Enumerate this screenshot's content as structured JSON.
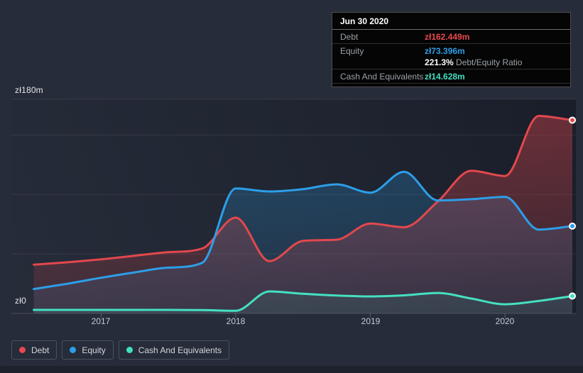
{
  "colors": {
    "background": "#262c39",
    "plot_shade": "#141823",
    "gridline": "#3a4150",
    "axis_text": "#c6ccd4",
    "tooltip_background": "#050505",
    "debt": "#e2484d",
    "equity": "#2d9ee8",
    "cash": "#45e0c1"
  },
  "axis": {
    "y_top_label": "zł180m",
    "y_zero_label": "zł0",
    "x_labels": [
      "2017",
      "2018",
      "2019",
      "2020"
    ]
  },
  "tooltip": {
    "title": "Jun 30 2020",
    "debt_label": "Debt",
    "debt_value": "zł162.449m",
    "equity_label": "Equity",
    "equity_value": "zł73.396m",
    "ratio_value": "221.3%",
    "ratio_label": "Debt/Equity Ratio",
    "cash_label": "Cash And Equivalents",
    "cash_value": "zł14.628m"
  },
  "legend": {
    "items": [
      {
        "label": "Debt",
        "color": "#e8484f"
      },
      {
        "label": "Equity",
        "color": "#2d9ee8"
      },
      {
        "label": "Cash And Equivalents",
        "color": "#42dfc0"
      }
    ]
  },
  "chart_data": {
    "type": "area",
    "title": "Debt, Equity and Cash history",
    "unit": "zł (PLN) millions",
    "x": [
      "2016-06-30",
      "2016-09-30",
      "2016-12-31",
      "2017-03-31",
      "2017-06-30",
      "2017-09-30",
      "2017-12-31",
      "2018-03-31",
      "2018-06-30",
      "2018-09-30",
      "2018-12-31",
      "2019-03-31",
      "2019-06-30",
      "2019-09-30",
      "2019-12-31",
      "2020-03-31",
      "2020-06-30"
    ],
    "x_tick_labels": [
      "2017",
      "2018",
      "2019",
      "2020"
    ],
    "ylim": [
      0,
      180
    ],
    "y_tick_labels": [
      "zł0",
      "zł180m"
    ],
    "gridline_values": [
      0,
      50,
      100,
      150,
      180
    ],
    "grid": true,
    "legend_position": "bottom-left",
    "highlighted_point": "2020-06-30",
    "series": [
      {
        "name": "Debt",
        "color": "#e2484d",
        "values": [
          41,
          43,
          45.5,
          48.5,
          51.5,
          54.5,
          80.5,
          44,
          61,
          62,
          75.5,
          72.5,
          94,
          120,
          115.5,
          166,
          162.449
        ]
      },
      {
        "name": "Equity",
        "color": "#2d9ee8",
        "values": [
          20.5,
          25,
          30,
          34.5,
          38.5,
          42.5,
          105,
          102.5,
          104.5,
          108.5,
          101.5,
          119,
          95,
          96,
          98,
          70.5,
          73.396
        ]
      },
      {
        "name": "Cash And Equivalents",
        "color": "#45e0c1",
        "values": [
          3,
          3,
          3,
          3,
          3,
          2.8,
          2.2,
          18.5,
          16.5,
          15,
          14.3,
          15.2,
          17.2,
          12.5,
          7.7,
          10.5,
          14.628
        ]
      }
    ]
  }
}
